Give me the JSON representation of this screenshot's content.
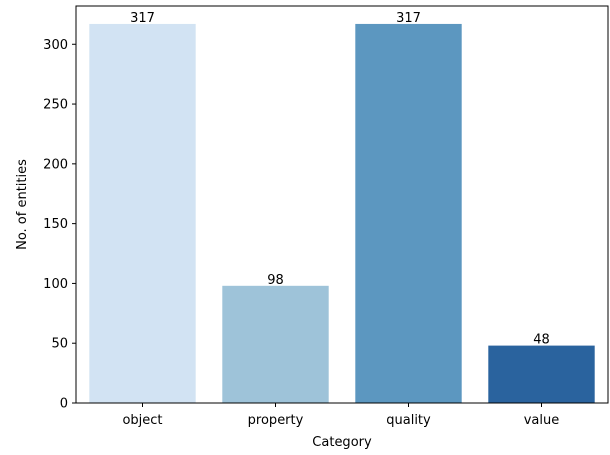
{
  "chart_data": {
    "type": "bar",
    "title": "",
    "xlabel": "Category",
    "ylabel": "No. of entities",
    "categories": [
      "object",
      "property",
      "quality",
      "value"
    ],
    "values": [
      317,
      98,
      317,
      48
    ],
    "data_labels": [
      "317",
      "98",
      "317",
      "48"
    ],
    "colors": [
      "#d2e3f3",
      "#9ec3d9",
      "#5c97c0",
      "#2a639e"
    ],
    "ylim": [
      0,
      332
    ],
    "yticks": [
      0,
      50,
      100,
      150,
      200,
      250,
      300
    ],
    "ytick_labels": [
      "0",
      "50",
      "100",
      "150",
      "200",
      "250",
      "300"
    ],
    "grid": false,
    "legend": "none"
  }
}
